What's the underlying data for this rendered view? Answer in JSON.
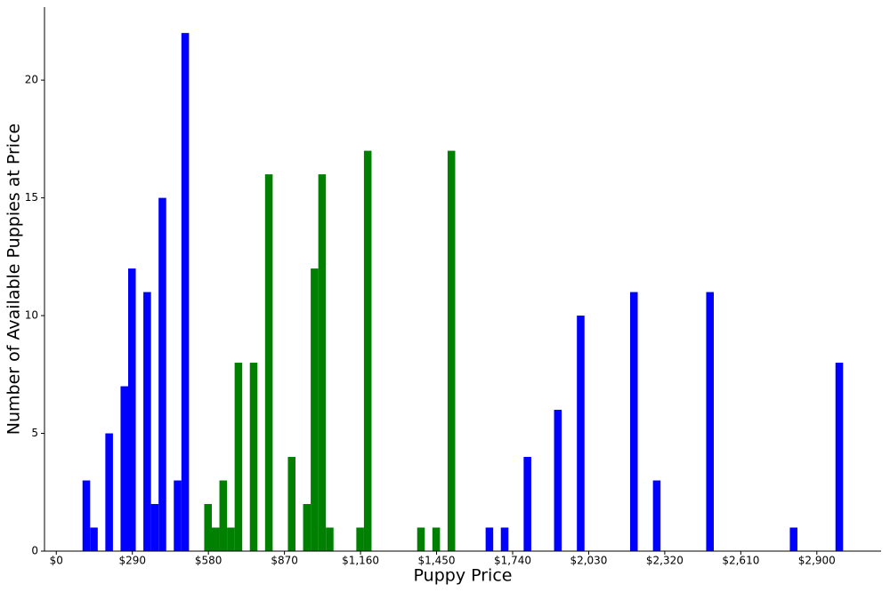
{
  "chart_data": {
    "type": "histogram",
    "x_label": "Puppy Price",
    "y_label": "Number of Available Puppies at Price",
    "bins": [
      100,
      129,
      158,
      187,
      216,
      245,
      274,
      303,
      332,
      361,
      390,
      419,
      448,
      477,
      506,
      535,
      564,
      593,
      622,
      651,
      680,
      709,
      738,
      767,
      796,
      825,
      854,
      883,
      912,
      941,
      970,
      999,
      1028,
      1057,
      1086,
      1115,
      1144,
      1173,
      1202,
      1231,
      1260,
      1289,
      1318,
      1347,
      1376,
      1405,
      1434,
      1463,
      1492,
      1521,
      1550,
      1579,
      1608,
      1637,
      1666,
      1695,
      1724,
      1753,
      1782,
      1811,
      1840,
      1869,
      1898,
      1927,
      1956,
      1985,
      2014,
      2043,
      2072,
      2101,
      2130,
      2159,
      2188,
      2217,
      2246,
      2275,
      2304,
      2333,
      2362,
      2391,
      2420,
      2449,
      2478,
      2507,
      2536,
      2565,
      2594,
      2623,
      2652,
      2681,
      2710,
      2739,
      2768,
      2797,
      2826,
      2855,
      2884,
      2913,
      2942,
      2971,
      3000
    ],
    "series": [
      {
        "color": "#0000ff",
        "values": [
          3,
          1,
          0,
          5,
          0,
          7,
          12,
          0,
          11,
          2,
          15,
          0,
          3,
          22,
          0,
          0,
          0,
          0,
          0,
          0,
          0,
          0,
          0,
          0,
          0,
          0,
          0,
          0,
          0,
          0,
          0,
          0,
          0,
          0,
          0,
          0,
          0,
          0,
          0,
          0,
          0,
          0,
          0,
          0,
          0,
          0,
          0,
          0,
          0,
          0,
          0,
          0,
          0,
          1,
          0,
          1,
          0,
          0,
          4,
          0,
          0,
          0,
          6,
          0,
          0,
          10,
          0,
          0,
          0,
          0,
          0,
          0,
          11,
          0,
          0,
          3,
          0,
          0,
          0,
          0,
          0,
          0,
          11,
          0,
          0,
          0,
          0,
          0,
          0,
          0,
          0,
          0,
          0,
          1,
          0,
          0,
          0,
          0,
          0,
          8
        ]
      },
      {
        "color": "#008000",
        "values": [
          0,
          0,
          0,
          0,
          0,
          0,
          0,
          0,
          0,
          0,
          0,
          0,
          0,
          0,
          0,
          0,
          2,
          1,
          3,
          1,
          8,
          0,
          8,
          0,
          16,
          0,
          0,
          4,
          0,
          2,
          12,
          16,
          1,
          0,
          0,
          0,
          1,
          17,
          0,
          0,
          0,
          0,
          0,
          0,
          1,
          0,
          1,
          0,
          17,
          0,
          0,
          0,
          0,
          0,
          0,
          0,
          0,
          0,
          0,
          0,
          0,
          0,
          0,
          0,
          0,
          0,
          0,
          0,
          0,
          0,
          0,
          0,
          0,
          0,
          0,
          0,
          0,
          0,
          0,
          0,
          0,
          0,
          0,
          0,
          0,
          0,
          0,
          0,
          0,
          0,
          0,
          0,
          0,
          0,
          0,
          0,
          0,
          0,
          0,
          0
        ]
      }
    ],
    "xlim": [
      -45,
      3145
    ],
    "ylim": [
      0,
      23.1
    ],
    "xticks": [
      {
        "value": 0,
        "label": "$0"
      },
      {
        "value": 290,
        "label": "$290"
      },
      {
        "value": 580,
        "label": "$580"
      },
      {
        "value": 870,
        "label": "$870"
      },
      {
        "value": 1160,
        "label": "$1,160"
      },
      {
        "value": 1450,
        "label": "$1,450"
      },
      {
        "value": 1740,
        "label": "$1,740"
      },
      {
        "value": 2030,
        "label": "$2,030"
      },
      {
        "value": 2320,
        "label": "$2,320"
      },
      {
        "value": 2610,
        "label": "$2,610"
      },
      {
        "value": 2900,
        "label": "$2,900"
      }
    ],
    "yticks": [
      0,
      5,
      10,
      15,
      20
    ]
  }
}
